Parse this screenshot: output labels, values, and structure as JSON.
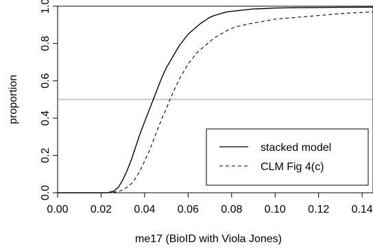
{
  "chart_data": {
    "type": "line",
    "title": "",
    "xlabel": "me17 (BioID with Viola Jones)",
    "ylabel": "proportion",
    "xlim": [
      0.0,
      0.145
    ],
    "ylim": [
      0.0,
      1.0
    ],
    "x_ticks": [
      0.0,
      0.02,
      0.04,
      0.06,
      0.08,
      0.1,
      0.12,
      0.14
    ],
    "x_tick_labels": [
      "0.00",
      "0.02",
      "0.04",
      "0.06",
      "0.08",
      "0.10",
      "0.12",
      "0.14"
    ],
    "y_ticks": [
      0.0,
      0.2,
      0.4,
      0.6,
      0.8,
      1.0
    ],
    "y_tick_labels": [
      "0.0",
      "0.2",
      "0.4",
      "0.6",
      "0.8",
      "1.0"
    ],
    "reference_line": {
      "y": 0.5,
      "color": "#999999"
    },
    "legend": {
      "position": "bottom-right"
    },
    "series": [
      {
        "name": "stacked model",
        "style": "solid",
        "x": [
          0.0,
          0.023,
          0.026,
          0.028,
          0.03,
          0.032,
          0.034,
          0.036,
          0.038,
          0.04,
          0.042,
          0.044,
          0.046,
          0.048,
          0.05,
          0.052,
          0.054,
          0.056,
          0.058,
          0.06,
          0.062,
          0.064,
          0.066,
          0.068,
          0.07,
          0.072,
          0.075,
          0.078,
          0.082,
          0.086,
          0.09,
          0.095,
          0.1,
          0.11,
          0.12,
          0.13,
          0.145
        ],
        "y": [
          0.0,
          0.0,
          0.01,
          0.03,
          0.07,
          0.12,
          0.18,
          0.25,
          0.32,
          0.38,
          0.44,
          0.5,
          0.56,
          0.62,
          0.67,
          0.71,
          0.75,
          0.79,
          0.82,
          0.85,
          0.87,
          0.89,
          0.91,
          0.925,
          0.94,
          0.95,
          0.96,
          0.97,
          0.975,
          0.98,
          0.985,
          0.987,
          0.99,
          0.992,
          0.993,
          0.994,
          0.995
        ]
      },
      {
        "name": "CLM Fig 4(c)",
        "style": "dashed",
        "x": [
          0.0,
          0.024,
          0.027,
          0.03,
          0.032,
          0.034,
          0.036,
          0.038,
          0.04,
          0.042,
          0.044,
          0.046,
          0.048,
          0.05,
          0.052,
          0.054,
          0.056,
          0.058,
          0.06,
          0.062,
          0.064,
          0.066,
          0.068,
          0.07,
          0.072,
          0.075,
          0.078,
          0.082,
          0.086,
          0.09,
          0.095,
          0.1,
          0.105,
          0.11,
          0.12,
          0.13,
          0.145
        ],
        "y": [
          0.0,
          0.0,
          0.005,
          0.015,
          0.03,
          0.05,
          0.08,
          0.12,
          0.17,
          0.22,
          0.28,
          0.34,
          0.4,
          0.45,
          0.51,
          0.56,
          0.61,
          0.65,
          0.69,
          0.72,
          0.75,
          0.77,
          0.79,
          0.81,
          0.83,
          0.85,
          0.87,
          0.89,
          0.9,
          0.91,
          0.92,
          0.93,
          0.935,
          0.94,
          0.95,
          0.96,
          0.97
        ]
      }
    ]
  }
}
